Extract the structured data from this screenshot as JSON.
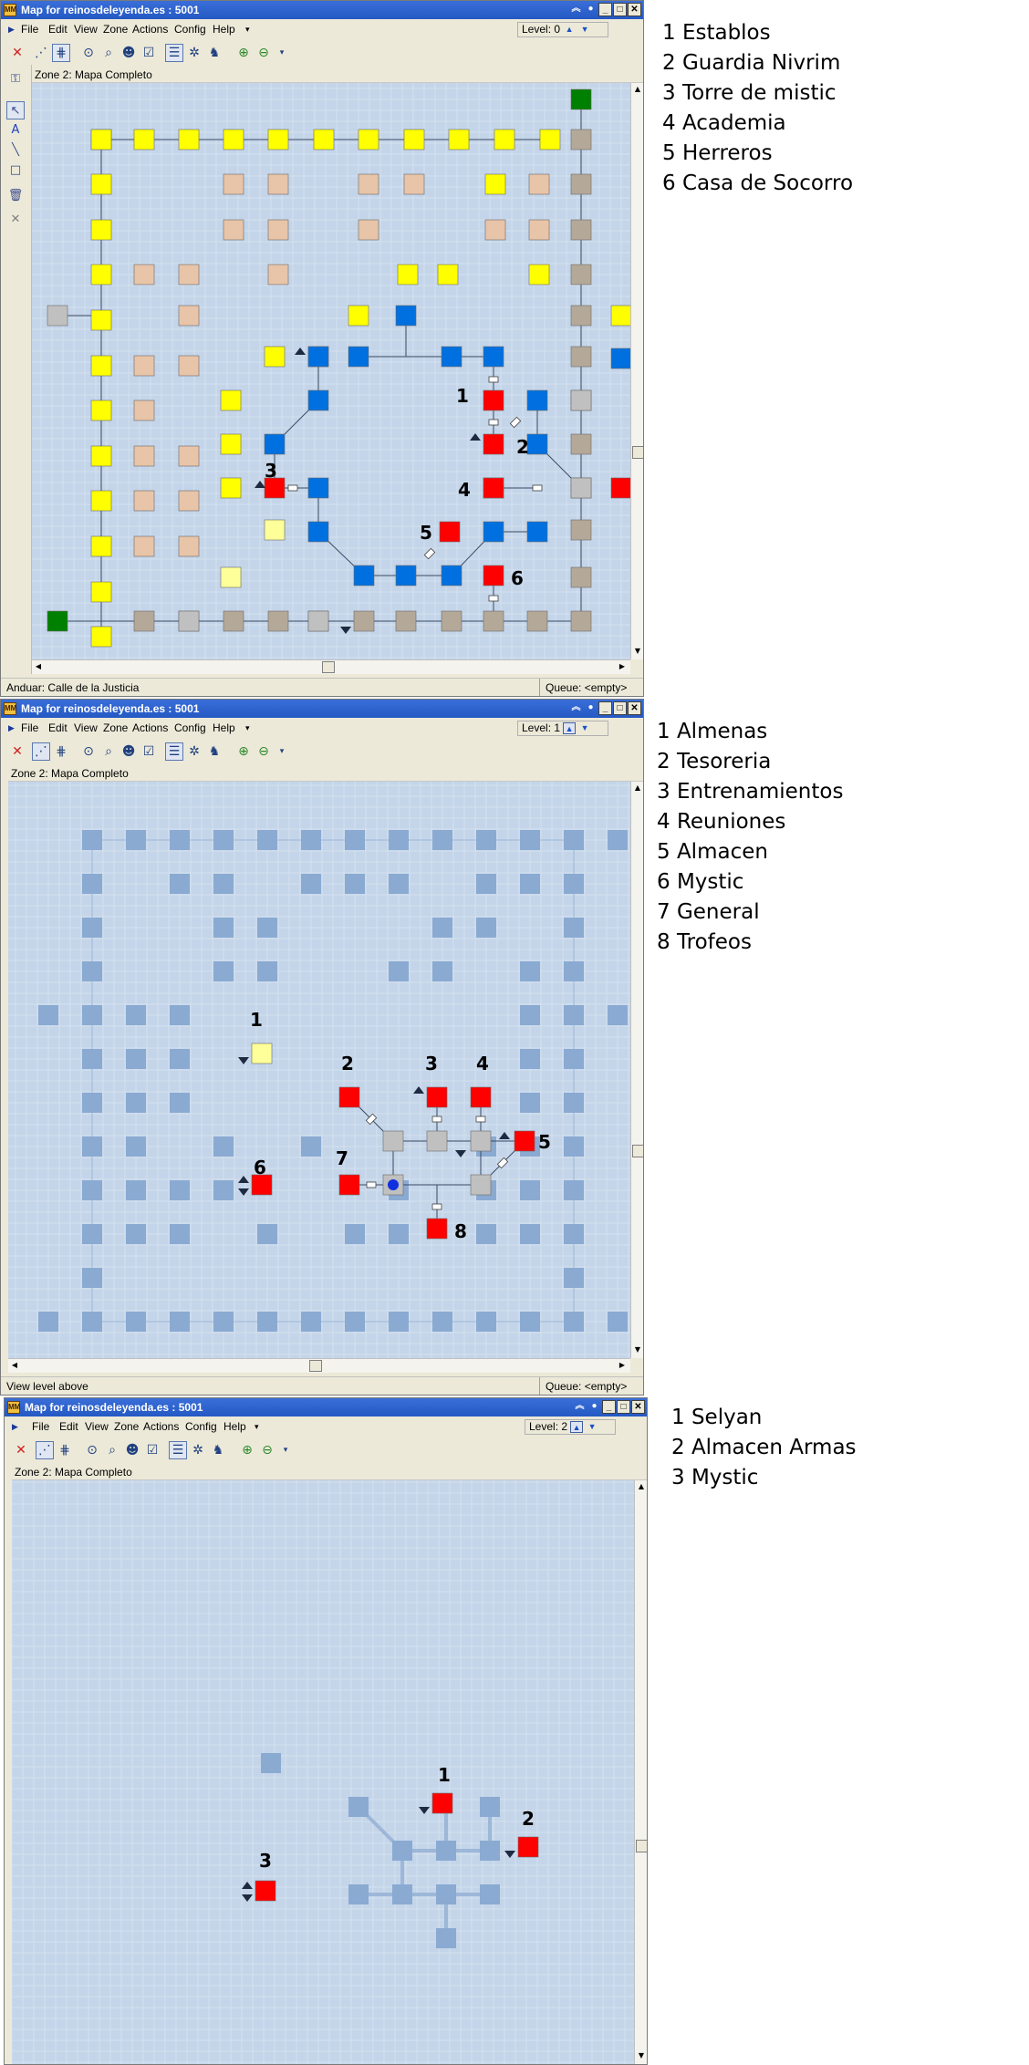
{
  "windows": [
    {
      "title": "Map for reinosdeleyenda.es : 5001",
      "app_icon": "MM",
      "menus": [
        "File",
        "Edit",
        "View",
        "Zone",
        "Actions",
        "Config",
        "Help"
      ],
      "level_label": "Level: 0",
      "zone_label": "Zone 2: Mapa Completo",
      "status_left": "Anduar: Calle de la Justicia",
      "status_right": "Queue: <empty>"
    },
    {
      "title": "Map for reinosdeleyenda.es : 5001",
      "app_icon": "MM",
      "menus": [
        "File",
        "Edit",
        "View",
        "Zone",
        "Actions",
        "Config",
        "Help"
      ],
      "level_label": "Level: 1",
      "zone_label": "Zone 2: Mapa Completo",
      "status_left": "View level above",
      "status_right": "Queue: <empty>"
    },
    {
      "title": "Map for reinosdeleyenda.es : 5001",
      "app_icon": "MM",
      "menus": [
        "File",
        "Edit",
        "View",
        "Zone",
        "Actions",
        "Config",
        "Help"
      ],
      "level_label": "Level: 2",
      "zone_label": "Zone 2: Mapa Completo"
    }
  ],
  "legends": [
    [
      "1 Establos",
      "2 Guardia Nivrim",
      "3 Torre de mistic",
      "4 Academia",
      "5 Herreros",
      "6 Casa de Socorro"
    ],
    [
      "1 Almenas",
      "2 Tesoreria",
      "3 Entrenamientos",
      "4 Reuniones",
      "5 Almacen",
      "6 Mystic",
      "7 General",
      "8 Trofeos"
    ],
    [
      "1 Selyan",
      "2 Almacen Armas",
      "3 Mystic"
    ]
  ],
  "map_labels": [
    [
      "1",
      "2",
      "3",
      "4",
      "5",
      "6"
    ],
    [
      "1",
      "2",
      "3",
      "4",
      "5",
      "6",
      "7",
      "8"
    ],
    [
      "1",
      "2",
      "3"
    ]
  ],
  "icons": {
    "toolbar": [
      "delete-icon",
      "walk-path-icon",
      "bridge-icon",
      "binoculars-icon",
      "find-icon",
      "players-icon",
      "check-icon",
      "room-info-icon",
      "explore-icon",
      "run-icon",
      "zoom-in-icon",
      "zoom-out-icon",
      "dropdown-icon"
    ],
    "sidebar": [
      "lock-icon",
      "pointer-icon",
      "text-icon",
      "line-icon",
      "rectangle-icon",
      "trash-icon",
      "close-icon"
    ]
  },
  "colors": {
    "yellow": "#ffff00",
    "pale_yellow": "#ffff99",
    "peach": "#e8c4a8",
    "taupe": "#b4a898",
    "grey": "#c0c0c0",
    "blue": "#0070e0",
    "red": "#ff0000",
    "green": "#008000",
    "faded": "#8aaad2",
    "canvas": "#c4d5e9"
  }
}
